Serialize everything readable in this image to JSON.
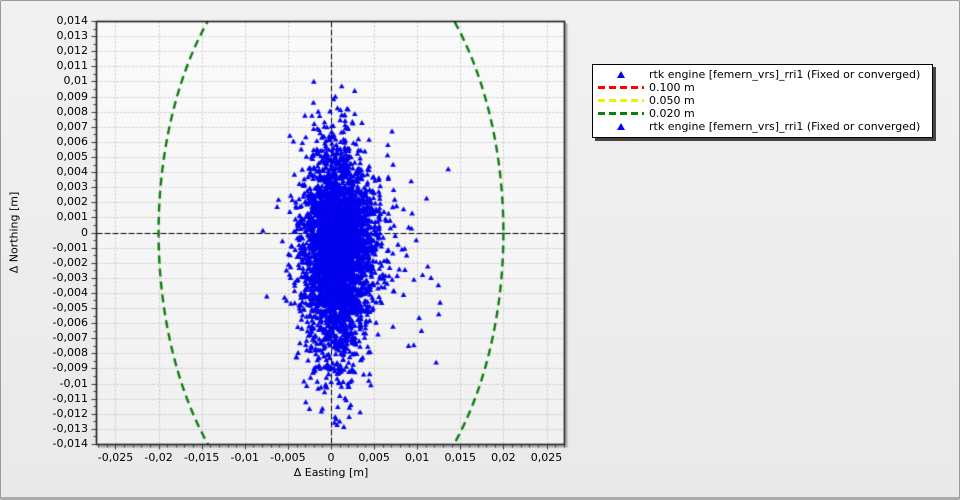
{
  "window": {
    "background": "#ececec",
    "border_color": "#9a9a9a"
  },
  "chart_data": {
    "type": "scatter",
    "title": "",
    "xlabel": "Δ Easting [m]",
    "ylabel": "Δ Northing [m]",
    "xlim": [
      -0.02726,
      0.02703
    ],
    "ylim": [
      -0.014,
      0.014
    ],
    "grid": true,
    "grid_color": "#c7c7c7",
    "zero_axis_color": "#000000",
    "plot_bg_top": "#fbfbfb",
    "plot_bg_bottom": "#f1f1f1",
    "border_color": "#1c1c1c",
    "x_tick_minor_step": 0.001,
    "y_tick_minor_step": 0.0005,
    "x_ticks": [
      {
        "value": -0.025,
        "label": "-0,025"
      },
      {
        "value": -0.02,
        "label": "-0,02"
      },
      {
        "value": -0.015,
        "label": "-0,015"
      },
      {
        "value": -0.01,
        "label": "-0,01"
      },
      {
        "value": -0.005,
        "label": "-0,005"
      },
      {
        "value": 0,
        "label": "0"
      },
      {
        "value": 0.005,
        "label": "0,005"
      },
      {
        "value": 0.01,
        "label": "0,01"
      },
      {
        "value": 0.015,
        "label": "0,015"
      },
      {
        "value": 0.02,
        "label": "0,02"
      },
      {
        "value": 0.025,
        "label": "0,025"
      }
    ],
    "y_ticks": [
      {
        "value": 0.014,
        "label": "0,014"
      },
      {
        "value": 0.013,
        "label": "0,013"
      },
      {
        "value": 0.012,
        "label": "0,012"
      },
      {
        "value": 0.011,
        "label": "0,011"
      },
      {
        "value": 0.01,
        "label": "0,01"
      },
      {
        "value": 0.009,
        "label": "0,009"
      },
      {
        "value": 0.008,
        "label": "0,008"
      },
      {
        "value": 0.007,
        "label": "0,007"
      },
      {
        "value": 0.006,
        "label": "0,006"
      },
      {
        "value": 0.005,
        "label": "0,005"
      },
      {
        "value": 0.004,
        "label": "0,004"
      },
      {
        "value": 0.003,
        "label": "0,003"
      },
      {
        "value": 0.002,
        "label": "0,002"
      },
      {
        "value": 0.001,
        "label": "0,001"
      },
      {
        "value": 0,
        "label": "0"
      },
      {
        "value": -0.001,
        "label": "-0,001"
      },
      {
        "value": -0.002,
        "label": "-0,002"
      },
      {
        "value": -0.003,
        "label": "-0,003"
      },
      {
        "value": -0.004,
        "label": "-0,004"
      },
      {
        "value": -0.005,
        "label": "-0,005"
      },
      {
        "value": -0.006,
        "label": "-0,006"
      },
      {
        "value": -0.007,
        "label": "-0,007"
      },
      {
        "value": -0.008,
        "label": "-0,008"
      },
      {
        "value": -0.009,
        "label": "-0,009"
      },
      {
        "value": -0.01,
        "label": "-0,01"
      },
      {
        "value": -0.011,
        "label": "-0,011"
      },
      {
        "value": -0.012,
        "label": "-0,012"
      },
      {
        "value": -0.013,
        "label": "-0,013"
      },
      {
        "value": -0.014,
        "label": "-0,014"
      }
    ],
    "threshold_circles": [
      {
        "radius_m": 0.1,
        "label": "0.100 m",
        "color": "#ff0000",
        "visible_in_plot": false
      },
      {
        "radius_m": 0.05,
        "label": "0.050 m",
        "color": "#f0f000",
        "visible_in_plot": false
      },
      {
        "radius_m": 0.02,
        "label": "0.020 m",
        "color": "#0f7d0f",
        "visible_in_plot": true
      }
    ],
    "series": [
      {
        "name": "rtk engine [femern_vrs]_rri1 (Fixed or converged)",
        "marker": "triangle-up",
        "color": "#0202ee",
        "approx_point_count": 3700,
        "dense_core": {
          "center_easting_m": 0.0007,
          "center_northing_m": -0.0013,
          "sigma_easting_m": 0.00205,
          "sigma_northing_m": 0.0033,
          "n": 3600
        },
        "right_tail": {
          "n": 80,
          "x_start": 0.004,
          "x_mean_extra": 0.0021,
          "x_max": 0.0132,
          "y_center": -0.002,
          "y_sigma": 0.0031
        },
        "bottom_tail": {
          "n": 28,
          "x_center": 0.0006,
          "x_sigma": 0.0013,
          "y_start": -0.0088,
          "y_mean_extra": 0.0013,
          "y_min": -0.0129
        },
        "top_tail": {
          "n": 12,
          "x_center": 0.0005,
          "x_sigma": 0.0012,
          "y_start": 0.0062,
          "y_mean_extra": 0.0009,
          "y_max": 0.0088
        },
        "seed": 1337,
        "outliers": [
          [
            0.0125,
            -0.0054
          ],
          [
            0.0122,
            -0.0086
          ],
          [
            0.0136,
            0.0042
          ],
          [
            0.0093,
            0.0034
          ],
          [
            0.0066,
            0.0058
          ],
          [
            0.0072,
            0.0045
          ],
          [
            0.0116,
            -0.003
          ],
          [
            0.0105,
            -0.0065
          ],
          [
            0.009,
            -0.0075
          ],
          [
            0.0005,
            0.009
          ],
          [
            0.001,
            -0.0125
          ],
          [
            0.0021,
            -0.0122
          ]
        ],
        "extent": {
          "easting": [
            -0.0062,
            0.0136
          ],
          "northing": [
            -0.0128,
            0.009
          ]
        }
      }
    ]
  },
  "legend": {
    "background": "#ffffff",
    "border_color": "#000000",
    "entries": [
      {
        "type": "triangle",
        "color": "#0202ee",
        "label": "rtk engine [femern_vrs]_rri1 (Fixed or converged)"
      },
      {
        "type": "dash",
        "color": "#ff0000",
        "label": "0.100 m"
      },
      {
        "type": "dash",
        "color": "#f0f000",
        "label": "0.050 m"
      },
      {
        "type": "dash",
        "color": "#0f7d0f",
        "label": "0.020 m"
      },
      {
        "type": "triangle",
        "color": "#0202ee",
        "label": "rtk engine [femern_vrs]_rri1 (Fixed or converged)"
      }
    ]
  }
}
